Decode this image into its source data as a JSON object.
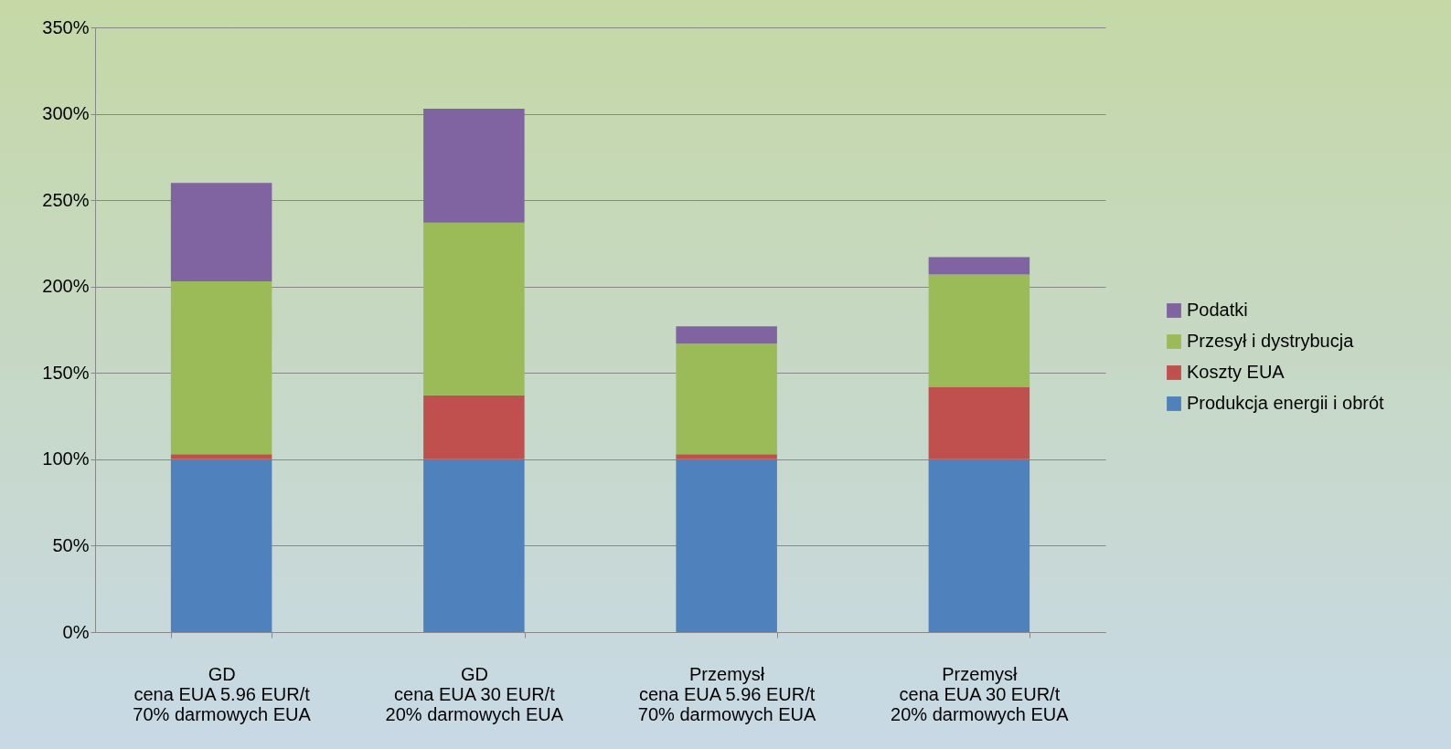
{
  "chart_data": {
    "type": "bar",
    "stacked": true,
    "categories": [
      "GD\ncena EUA 5.96 EUR/t\n70% darmowych EUA",
      "GD\ncena EUA 30 EUR/t\n20% darmowych EUA",
      "Przemysł\ncena EUA 5.96 EUR/t\n70% darmowych EUA",
      "Przemysł\ncena EUA 30 EUR/t\n20% darmowych EUA"
    ],
    "series": [
      {
        "name": "Produkcja energii i obrót",
        "color": "#4f81bd",
        "values": [
          100,
          100,
          100,
          100
        ]
      },
      {
        "name": "Koszty EUA",
        "color": "#c0504d",
        "values": [
          3,
          37,
          3,
          42
        ]
      },
      {
        "name": "Przesył i dystrybucja",
        "color": "#9bbb59",
        "values": [
          100,
          100,
          64,
          65
        ]
      },
      {
        "name": "Podatki",
        "color": "#8064a2",
        "values": [
          57,
          66,
          10,
          10
        ]
      }
    ],
    "ylim": [
      0,
      350
    ],
    "yticks": [
      {
        "value": 0,
        "label": "0%"
      },
      {
        "value": 50,
        "label": "50%"
      },
      {
        "value": 100,
        "label": "100%"
      },
      {
        "value": 150,
        "label": "150%"
      },
      {
        "value": 200,
        "label": "200%"
      },
      {
        "value": 250,
        "label": "250%"
      },
      {
        "value": 300,
        "label": "300%"
      },
      {
        "value": 350,
        "label": "350%"
      }
    ],
    "grid": "y",
    "legend": "right"
  }
}
